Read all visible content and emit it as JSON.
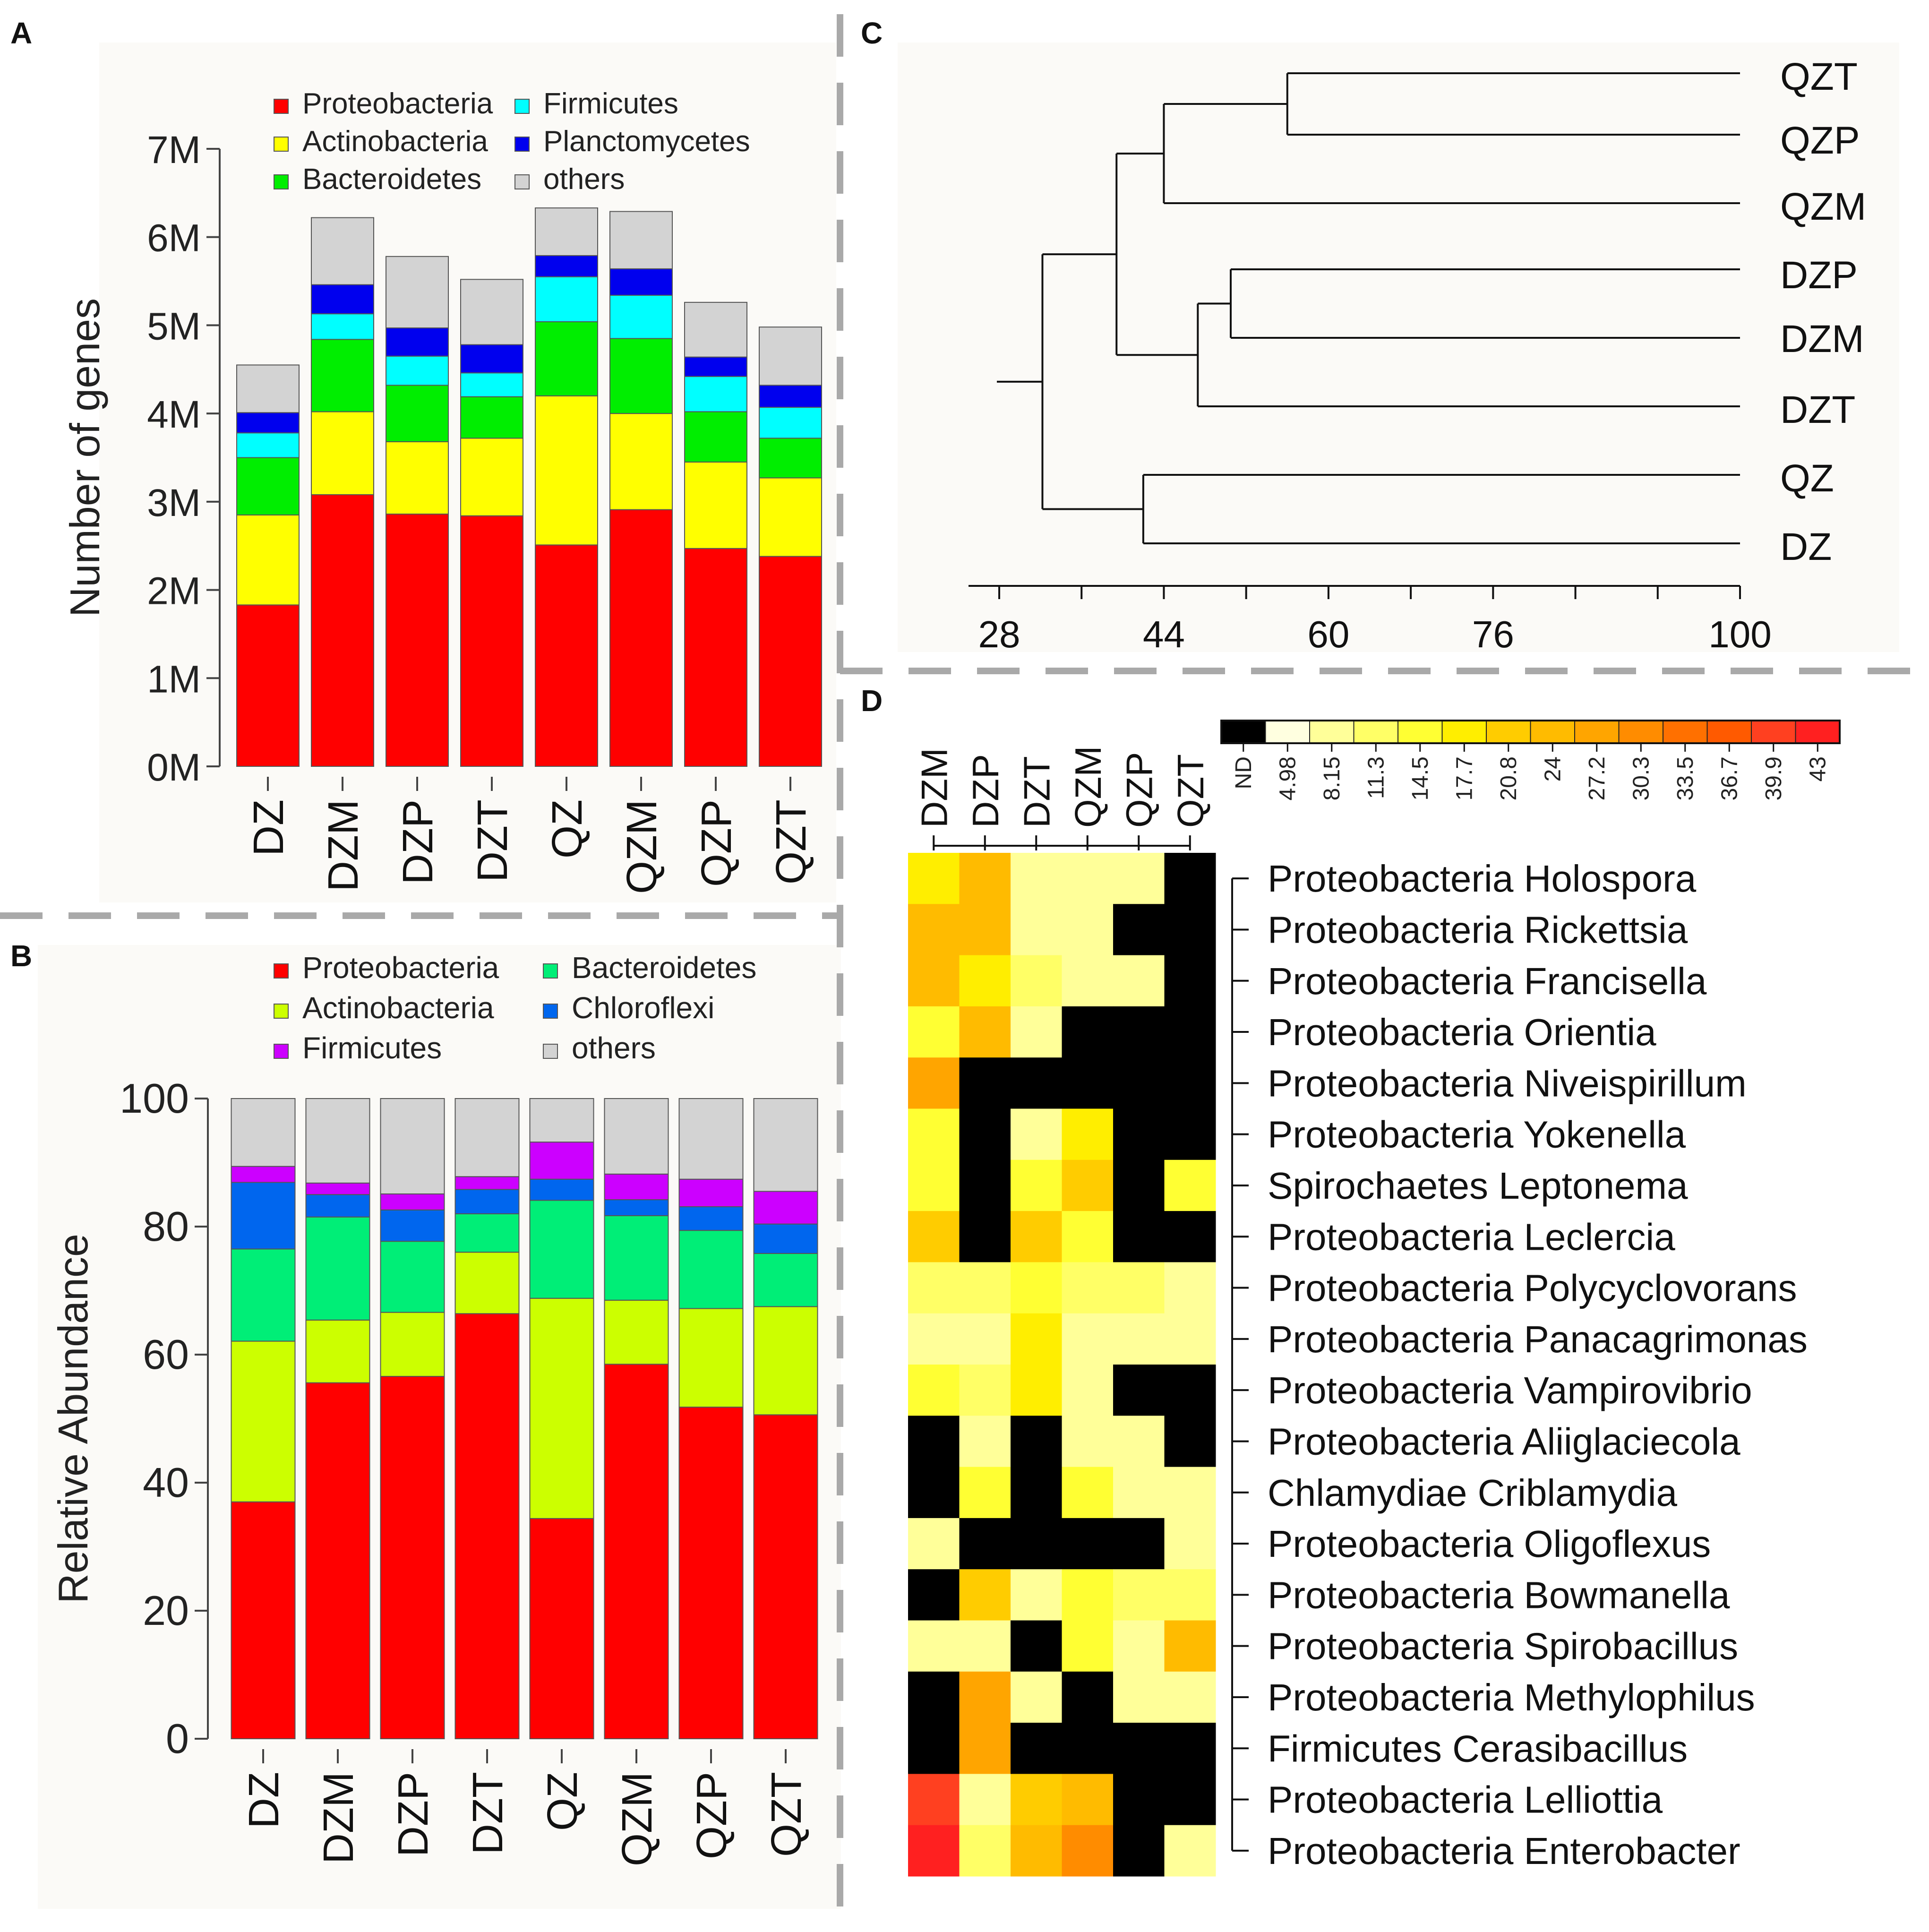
{
  "panels": {
    "a": "A",
    "b": "B",
    "c": "C",
    "d": "D"
  },
  "chart_data": [
    {
      "panel": "A",
      "type": "bar",
      "stacked": true,
      "ylabel": "Number of genes",
      "ylim": [
        0,
        7000000
      ],
      "yticks": [
        0,
        1000000,
        2000000,
        3000000,
        4000000,
        5000000,
        6000000,
        7000000
      ],
      "ytick_labels": [
        "0M",
        "1M",
        "2M",
        "3M",
        "4M",
        "5M",
        "6M",
        "7M"
      ],
      "categories": [
        "DZ",
        "DZM",
        "DZP",
        "DZT",
        "QZ",
        "QZM",
        "QZP",
        "QZT"
      ],
      "legend_position": "top",
      "series": [
        {
          "name": "Proteobacteria",
          "color": "#ff0000",
          "values": [
            1830000,
            3080000,
            2860000,
            2840000,
            2510000,
            2910000,
            2470000,
            2380000
          ]
        },
        {
          "name": "Actinobacteria",
          "color": "#ffff00",
          "values": [
            1020000,
            940000,
            820000,
            880000,
            1690000,
            1090000,
            980000,
            890000
          ]
        },
        {
          "name": "Bacteroidetes",
          "color": "#00ee00",
          "values": [
            650000,
            820000,
            640000,
            470000,
            840000,
            850000,
            570000,
            450000
          ]
        },
        {
          "name": "Firmicutes",
          "color": "#00ffff",
          "values": [
            280000,
            290000,
            330000,
            270000,
            510000,
            490000,
            400000,
            350000
          ]
        },
        {
          "name": "Planctomycetes",
          "color": "#0000ee",
          "values": [
            230000,
            330000,
            320000,
            320000,
            240000,
            300000,
            220000,
            250000
          ]
        },
        {
          "name": "others",
          "color": "#d3d3d3",
          "values": [
            540000,
            760000,
            810000,
            740000,
            540000,
            650000,
            620000,
            660000
          ]
        }
      ]
    },
    {
      "panel": "B",
      "type": "bar",
      "stacked": true,
      "ylabel": "Relative Abundance",
      "ylim": [
        0,
        100
      ],
      "yticks": [
        0,
        20,
        40,
        60,
        80,
        100
      ],
      "ytick_labels": [
        "0",
        "20",
        "40",
        "60",
        "80",
        "100"
      ],
      "categories": [
        "DZ",
        "DZM",
        "DZP",
        "DZT",
        "QZ",
        "QZM",
        "QZP",
        "QZT"
      ],
      "legend_position": "top",
      "series": [
        {
          "name": "Proteobacteria",
          "color": "#ff0000",
          "values": [
            37,
            55.6,
            56.6,
            66.4,
            34.4,
            58.5,
            51.8,
            50.6
          ]
        },
        {
          "name": "Actinobacteria",
          "color": "#ccff00",
          "values": [
            25.1,
            9.8,
            10,
            9.6,
            34.4,
            10,
            15.4,
            16.9
          ]
        },
        {
          "name": "Bacteroidetes",
          "color": "#00ee77",
          "values": [
            14.4,
            16.1,
            11.1,
            6,
            15.3,
            13.2,
            12.2,
            8.3
          ]
        },
        {
          "name": "Chloroflexi",
          "color": "#0066ee",
          "values": [
            10.4,
            3.5,
            4.9,
            3.8,
            3.3,
            2.5,
            3.7,
            4.6
          ]
        },
        {
          "name": "Firmicutes",
          "color": "#cc00ff",
          "values": [
            2.5,
            1.8,
            2.5,
            2,
            5.8,
            4,
            4.3,
            5.1
          ]
        },
        {
          "name": "others",
          "color": "#d3d3d3",
          "values": [
            10.6,
            13.2,
            14.9,
            12.2,
            6.8,
            11.8,
            12.6,
            14.5
          ]
        }
      ]
    },
    {
      "panel": "C",
      "type": "dendrogram",
      "leaves": [
        "QZT",
        "QZP",
        "QZM",
        "DZP",
        "DZM",
        "DZT",
        "QZ",
        "DZ"
      ],
      "axis_ticks": [
        28,
        44,
        60,
        76,
        100
      ],
      "axis_range": [
        25,
        100
      ],
      "merges": [
        {
          "a": "QZT",
          "b": "QZP",
          "height": 56
        },
        {
          "a": "DZP",
          "b": "DZM",
          "height": 50.5
        },
        {
          "a": "QZ",
          "b": "DZ",
          "height": 42
        },
        {
          "a": "QZT,QZP",
          "b": "QZM",
          "height": 44
        },
        {
          "a": "DZP,DZM",
          "b": "DZT",
          "height": 47.3
        },
        {
          "a": "QZT,QZP,QZM",
          "b": "DZP,DZM,DZT",
          "height": 39.4
        },
        {
          "a": "QZT,QZP,QZM,DZP,DZM,DZT",
          "b": "QZ,DZ",
          "height": 32.2
        },
        {
          "a": "all",
          "b": "root",
          "height": 28
        }
      ]
    },
    {
      "panel": "D",
      "type": "heatmap",
      "columns": [
        "DZM",
        "DZP",
        "DZT",
        "QZM",
        "QZP",
        "QZT"
      ],
      "rows": [
        "Proteobacteria Holospora",
        "Proteobacteria Rickettsia",
        "Proteobacteria Francisella",
        "Proteobacteria Orientia",
        "Proteobacteria Niveispirillum",
        "Proteobacteria Yokenella",
        "Spirochaetes Leptonema",
        "Proteobacteria Leclercia",
        "Proteobacteria Polycyclovorans",
        "Proteobacteria Panacagrimonas",
        "Proteobacteria Vampirovibrio",
        "Proteobacteria Aliiglaciecola",
        "Chlamydiae Criblamydia",
        "Proteobacteria Oligoflexus",
        "Proteobacteria Bowmanella",
        "Proteobacteria Spirobacillus",
        "Proteobacteria Methylophilus",
        "Firmicutes Cerasibacillus",
        "Proteobacteria Lelliottia",
        "Proteobacteria Enterobacter"
      ],
      "values": [
        [
          17,
          21,
          8,
          5,
          5,
          0
        ],
        [
          21,
          21,
          8,
          8,
          0,
          0
        ],
        [
          21,
          16,
          11,
          8,
          5,
          0
        ],
        [
          13,
          21,
          5,
          0,
          0,
          0
        ],
        [
          27,
          0,
          0,
          0,
          0,
          0
        ],
        [
          13,
          0,
          5,
          17,
          0,
          0
        ],
        [
          13,
          0,
          13,
          20,
          0,
          13
        ],
        [
          20,
          0,
          20,
          13,
          0,
          0
        ],
        [
          11,
          11,
          13,
          11,
          11,
          5
        ],
        [
          5,
          8,
          17,
          8,
          8,
          8
        ],
        [
          14,
          11,
          17,
          5,
          0,
          0
        ],
        [
          0,
          8,
          0,
          5,
          8,
          0
        ],
        [
          0,
          13,
          0,
          13,
          8,
          5
        ],
        [
          5,
          0,
          0,
          0,
          0,
          8
        ],
        [
          0,
          18,
          5,
          14,
          11,
          11
        ],
        [
          5,
          5,
          0,
          14,
          5,
          22
        ],
        [
          0,
          26,
          5,
          0,
          5,
          5
        ],
        [
          0,
          26,
          0,
          0,
          0,
          0
        ],
        [
          37,
          5,
          20,
          23,
          0,
          0
        ],
        [
          42,
          11,
          24,
          29,
          0,
          5
        ]
      ],
      "colorbar_labels": [
        "ND",
        "4.98",
        "8.15",
        "11.3",
        "14.5",
        "17.7",
        "20.8",
        "24",
        "27.2",
        "30.3",
        "33.5",
        "36.7",
        "39.9",
        "43"
      ],
      "colorbar_colors": [
        "#000000",
        "#ffffe0",
        "#ffff99",
        "#ffff66",
        "#ffff33",
        "#ffee00",
        "#ffcc00",
        "#ffbb00",
        "#ffa500",
        "#ff8c00",
        "#ff7000",
        "#ff5a00",
        "#ff4020",
        "#ff2020"
      ]
    }
  ]
}
